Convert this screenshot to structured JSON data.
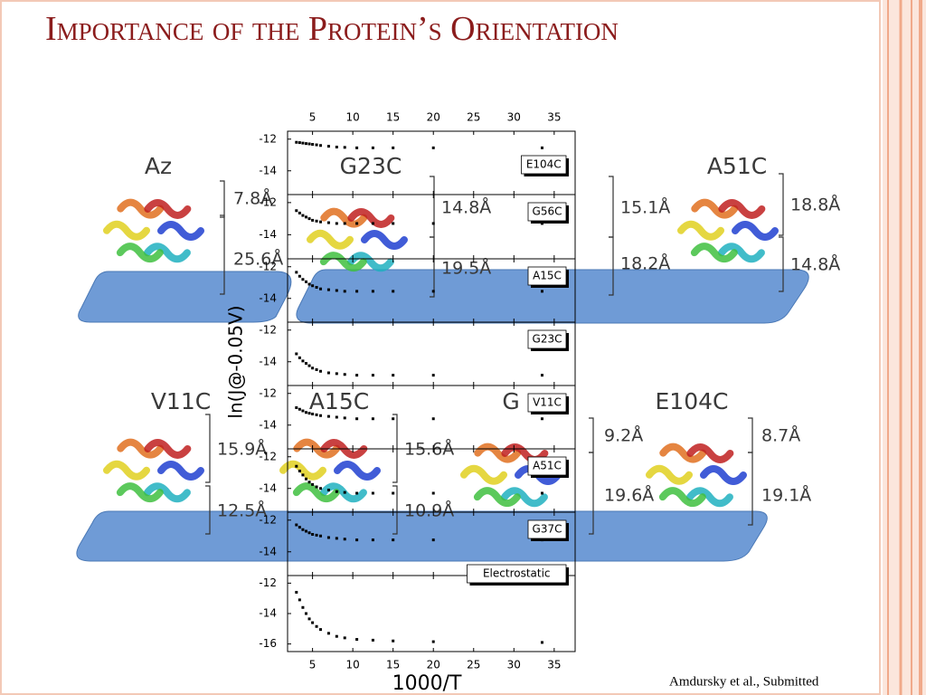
{
  "title": "Importance of the Protein’s Orientation",
  "citation": "Amdursky et al., Submitted",
  "protein_figures": [
    {
      "name": "Az",
      "distances": [
        "7.8Å",
        "25.6Å"
      ]
    },
    {
      "name": "G23C",
      "distances": [
        "14.8Å",
        "19.5Å"
      ]
    },
    {
      "name": "A51C",
      "distances": [
        "15.1Å",
        "18.2Å",
        "18.8Å",
        "14.8Å"
      ]
    },
    {
      "name": "V11C",
      "distances": [
        "15.9Å",
        "12.5Å"
      ]
    },
    {
      "name": "A15C",
      "distances": [
        "15.6Å",
        "10.9Å"
      ]
    },
    {
      "name": "G",
      "distances": []
    },
    {
      "name": "E104C",
      "distances": [
        "9.2Å",
        "19.6Å",
        "8.7Å",
        "19.1Å"
      ]
    }
  ],
  "chart_data": [
    {
      "type": "scatter",
      "name": "E104C",
      "ylabel": "ln(J@-0.05V)",
      "color": "#000000",
      "x": [
        3,
        3.4,
        3.8,
        4.2,
        4.6,
        5,
        5.5,
        6,
        7,
        8,
        9,
        10.5,
        12.5,
        15,
        20,
        33.5
      ],
      "values": [
        -12.2,
        -12.22,
        -12.25,
        -12.28,
        -12.3,
        -12.33,
        -12.36,
        -12.4,
        -12.45,
        -12.5,
        -12.52,
        -12.55,
        -12.55,
        -12.55,
        -12.55,
        -12.55
      ],
      "xlim": [
        1.9,
        37.6
      ],
      "xticks": [
        5,
        10,
        15,
        20,
        25,
        30,
        35
      ],
      "ylim": [
        -15.5,
        -11.5
      ],
      "yticks": [
        -12,
        -14
      ]
    },
    {
      "type": "scatter",
      "name": "G56C",
      "color": "#000000",
      "x": [
        3,
        3.4,
        3.8,
        4.2,
        4.6,
        5,
        5.5,
        6,
        7,
        8,
        9,
        10.5,
        12.5,
        15,
        20,
        33.5
      ],
      "values": [
        -12.5,
        -12.65,
        -12.8,
        -12.9,
        -13.0,
        -13.1,
        -13.15,
        -13.2,
        -13.25,
        -13.3,
        -13.3,
        -13.3,
        -13.3,
        -13.3,
        -13.3,
        -13.3
      ],
      "xlim": [
        1.9,
        37.6
      ],
      "xticks": [
        5,
        10,
        15,
        20,
        25,
        30,
        35
      ],
      "ylim": [
        -15.5,
        -11.5
      ],
      "yticks": [
        -12,
        -14
      ]
    },
    {
      "type": "scatter",
      "name": "A15C",
      "color": "#000000",
      "x": [
        3,
        3.4,
        3.8,
        4.2,
        4.6,
        5,
        5.5,
        6,
        7,
        8,
        9,
        10.5,
        12.5,
        15,
        20,
        33.5
      ],
      "values": [
        -12.35,
        -12.6,
        -12.8,
        -12.95,
        -13.1,
        -13.2,
        -13.3,
        -13.4,
        -13.45,
        -13.5,
        -13.55,
        -13.55,
        -13.55,
        -13.55,
        -13.55,
        -13.55
      ],
      "xlim": [
        1.9,
        37.6
      ],
      "xticks": [
        5,
        10,
        15,
        20,
        25,
        30,
        35
      ],
      "ylim": [
        -15.5,
        -11.5
      ],
      "yticks": [
        -12,
        -14
      ]
    },
    {
      "type": "scatter",
      "name": "G23C",
      "color": "#000000",
      "x": [
        3,
        3.4,
        3.8,
        4.2,
        4.6,
        5,
        5.5,
        6,
        7,
        8,
        9,
        10.5,
        12.5,
        15,
        20,
        33.5
      ],
      "values": [
        -13.5,
        -13.75,
        -13.95,
        -14.1,
        -14.25,
        -14.4,
        -14.5,
        -14.6,
        -14.7,
        -14.75,
        -14.8,
        -14.85,
        -14.85,
        -14.85,
        -14.85,
        -14.85
      ],
      "xlim": [
        1.9,
        37.6
      ],
      "xticks": [
        5,
        10,
        15,
        20,
        25,
        30,
        35
      ],
      "ylim": [
        -15.5,
        -11.5
      ],
      "yticks": [
        -12,
        -14
      ]
    },
    {
      "type": "scatter",
      "name": "V11C",
      "color": "#000000",
      "x": [
        3,
        3.4,
        3.8,
        4.2,
        4.6,
        5,
        5.5,
        6,
        7,
        8,
        9,
        10.5,
        12.5,
        15,
        20,
        33.5
      ],
      "values": [
        -12.9,
        -13.0,
        -13.1,
        -13.2,
        -13.25,
        -13.3,
        -13.35,
        -13.4,
        -13.45,
        -13.5,
        -13.55,
        -13.6,
        -13.6,
        -13.6,
        -13.6,
        -13.6
      ],
      "xlim": [
        1.9,
        37.6
      ],
      "xticks": [
        5,
        10,
        15,
        20,
        25,
        30,
        35
      ],
      "ylim": [
        -15.5,
        -11.5
      ],
      "yticks": [
        -12,
        -14
      ]
    },
    {
      "type": "scatter",
      "name": "A51C",
      "color": "#000000",
      "x": [
        3,
        3.4,
        3.8,
        4.2,
        4.6,
        5,
        5.5,
        6,
        7,
        8,
        9,
        10.5,
        12.5,
        15,
        20,
        33.5
      ],
      "values": [
        -12.6,
        -12.9,
        -13.15,
        -13.4,
        -13.6,
        -13.75,
        -13.9,
        -14.0,
        -14.1,
        -14.2,
        -14.25,
        -14.3,
        -14.3,
        -14.3,
        -14.3,
        -14.3
      ],
      "xlim": [
        1.9,
        37.6
      ],
      "xticks": [
        5,
        10,
        15,
        20,
        25,
        30,
        35
      ],
      "ylim": [
        -15.5,
        -11.5
      ],
      "yticks": [
        -12,
        -14
      ]
    },
    {
      "type": "scatter",
      "name": "G37C",
      "color": "#000000",
      "x": [
        3,
        3.4,
        3.8,
        4.2,
        4.6,
        5,
        5.5,
        6,
        7,
        8,
        9,
        10.5,
        12.5,
        15,
        20,
        33.5
      ],
      "values": [
        -12.3,
        -12.45,
        -12.6,
        -12.7,
        -12.8,
        -12.9,
        -12.95,
        -13.0,
        -13.1,
        -13.15,
        -13.2,
        -13.25,
        -13.25,
        -13.25,
        -13.25,
        -13.25
      ],
      "xlim": [
        1.9,
        37.6
      ],
      "xticks": [
        5,
        10,
        15,
        20,
        25,
        30,
        35
      ],
      "ylim": [
        -15.5,
        -11.5
      ],
      "yticks": [
        -12,
        -14
      ]
    },
    {
      "type": "scatter",
      "name": "Electrostatic",
      "xlabel": "1000/T",
      "color": "#000000",
      "x": [
        3,
        3.4,
        3.8,
        4.2,
        4.6,
        5,
        5.5,
        6,
        7,
        8,
        9,
        10.5,
        12.5,
        15,
        20,
        33.5
      ],
      "values": [
        -12.6,
        -13.1,
        -13.6,
        -14.0,
        -14.35,
        -14.6,
        -14.85,
        -15.05,
        -15.3,
        -15.5,
        -15.6,
        -15.7,
        -15.75,
        -15.8,
        -15.85,
        -15.9
      ],
      "xlim": [
        1.9,
        37.6
      ],
      "xticks": [
        5,
        10,
        15,
        20,
        25,
        30,
        35
      ],
      "ylim": [
        -16.5,
        -11.5
      ],
      "yticks": [
        -12,
        -14,
        -16
      ]
    }
  ]
}
